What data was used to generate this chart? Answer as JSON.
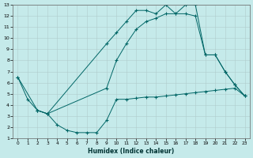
{
  "xlabel": "Humidex (Indice chaleur)",
  "bg_color": "#c5eaea",
  "grid_color": "#b0cccc",
  "line_color": "#006666",
  "xlim": [
    -0.5,
    23.5
  ],
  "ylim": [
    1,
    13
  ],
  "xticks": [
    0,
    1,
    2,
    3,
    4,
    5,
    6,
    7,
    8,
    9,
    10,
    11,
    12,
    13,
    14,
    15,
    16,
    17,
    18,
    19,
    20,
    21,
    22,
    23
  ],
  "yticks": [
    1,
    2,
    3,
    4,
    5,
    6,
    7,
    8,
    9,
    10,
    11,
    12,
    13
  ],
  "line1_x": [
    0,
    1,
    2,
    3,
    4,
    5,
    6,
    7,
    8,
    9,
    10,
    11,
    12,
    13,
    14,
    15,
    16,
    17,
    18,
    19,
    20,
    21,
    22,
    23
  ],
  "line1_y": [
    6.5,
    4.5,
    3.5,
    3.2,
    2.2,
    1.7,
    1.5,
    1.5,
    1.5,
    2.6,
    4.5,
    4.5,
    4.6,
    4.7,
    4.7,
    4.8,
    4.9,
    5.0,
    5.1,
    5.2,
    5.3,
    5.4,
    5.5,
    4.8
  ],
  "line2_x": [
    0,
    2,
    3,
    9,
    10,
    11,
    12,
    13,
    14,
    15,
    16,
    17,
    18,
    19,
    20,
    21,
    22,
    23
  ],
  "line2_y": [
    6.5,
    3.5,
    3.2,
    9.5,
    10.5,
    11.5,
    12.5,
    12.5,
    12.2,
    13.0,
    12.2,
    13.0,
    13.0,
    8.5,
    8.5,
    7.0,
    5.8,
    4.8
  ],
  "line3_x": [
    2,
    3,
    9,
    10,
    11,
    12,
    13,
    14,
    15,
    16,
    17,
    18,
    19,
    20,
    21,
    22,
    23
  ],
  "line3_y": [
    3.5,
    3.2,
    5.5,
    8.0,
    9.5,
    10.8,
    11.5,
    11.8,
    12.2,
    12.2,
    12.2,
    12.0,
    8.5,
    8.5,
    7.0,
    5.8,
    4.8
  ]
}
